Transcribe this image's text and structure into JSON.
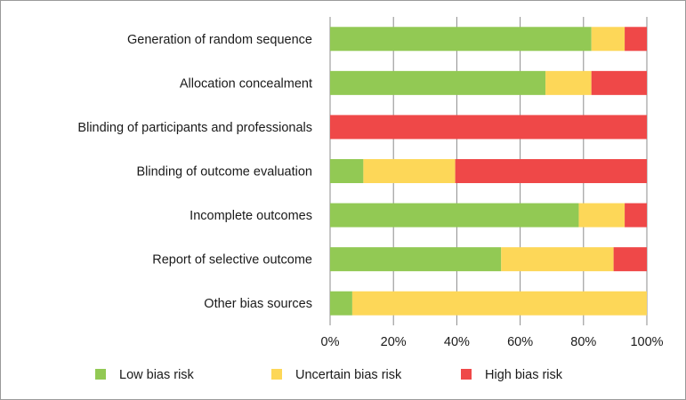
{
  "chart_data": {
    "type": "bar",
    "orientation": "horizontal",
    "stacked": true,
    "categories": [
      "Generation of random sequence",
      "Allocation concealment",
      "Blinding of participants and professionals",
      "Blinding of outcome evaluation",
      "Incomplete outcomes",
      "Report of selective outcome",
      "Other bias sources"
    ],
    "series": [
      {
        "name": "Low bias risk",
        "color": "#92c954",
        "values": [
          82.5,
          68,
          0,
          10.5,
          78.5,
          54,
          7
        ]
      },
      {
        "name": "Uncertain bias risk",
        "color": "#fdd758",
        "values": [
          10.5,
          14.5,
          0,
          29,
          14.5,
          35.5,
          93
        ]
      },
      {
        "name": "High bias risk",
        "color": "#ef4848",
        "values": [
          7,
          17.5,
          100,
          60.5,
          7,
          10.5,
          0
        ]
      }
    ],
    "xlim": [
      0,
      100
    ],
    "xticks": [
      "0%",
      "20%",
      "40%",
      "60%",
      "80%",
      "100%"
    ],
    "grid": "vertical",
    "legend": "bottom"
  }
}
